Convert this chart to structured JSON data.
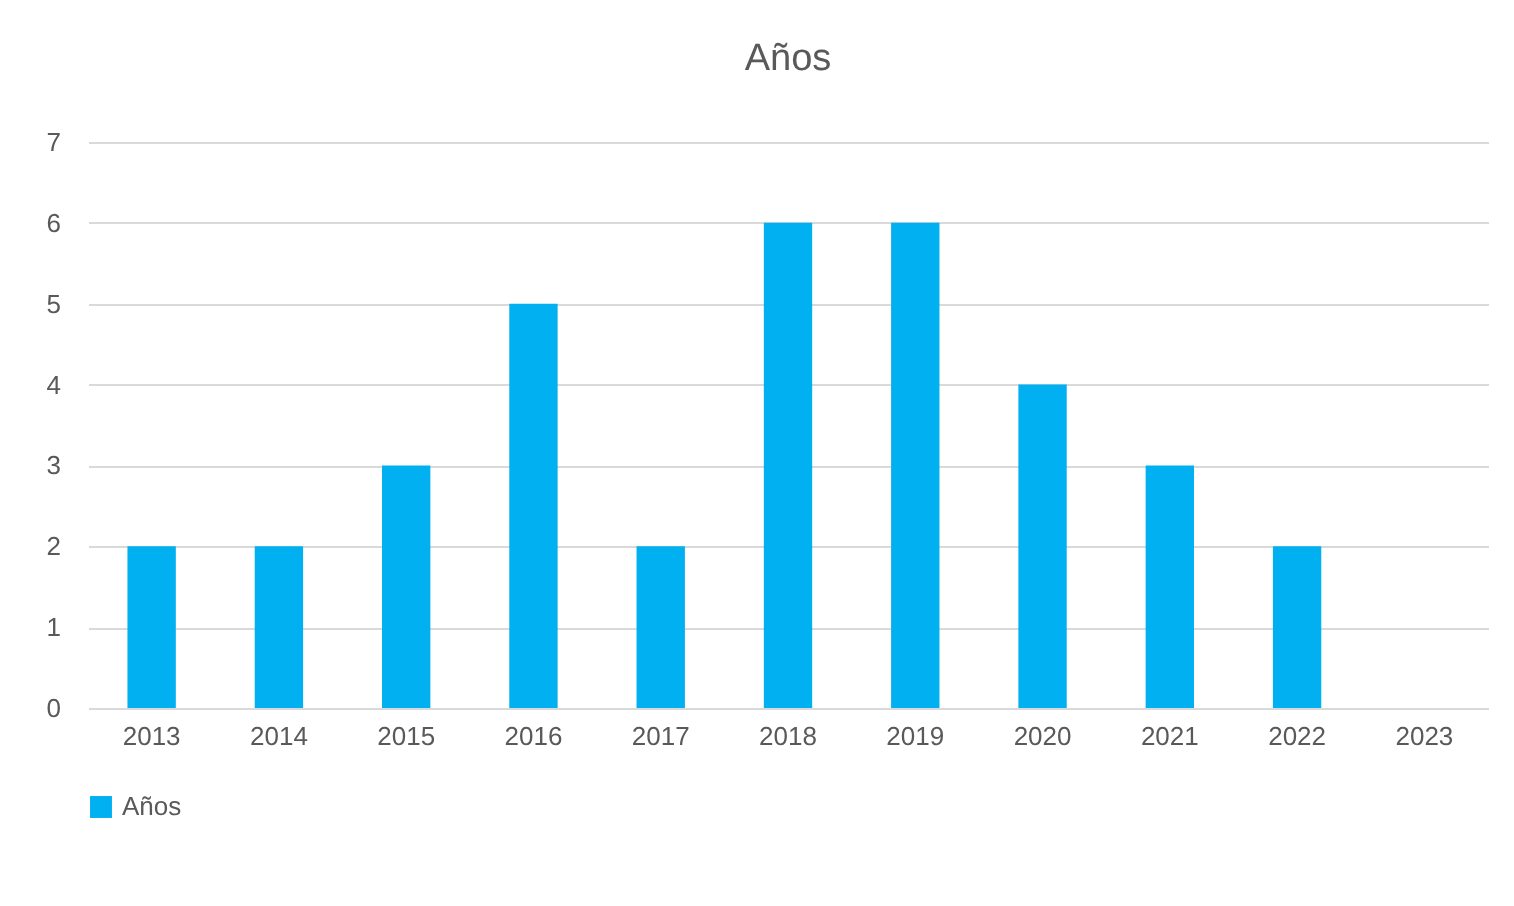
{
  "chart_data": {
    "type": "bar",
    "title": "Años",
    "categories": [
      "2013",
      "2014",
      "2015",
      "2016",
      "2017",
      "2018",
      "2019",
      "2020",
      "2021",
      "2022",
      "2023"
    ],
    "series": [
      {
        "name": "Años",
        "color": "#00b0f0",
        "values": [
          2,
          2,
          3,
          5,
          2,
          6,
          6,
          4,
          3,
          2,
          0
        ]
      }
    ],
    "ylim": [
      0,
      7
    ],
    "yticks": [
      0,
      1,
      2,
      3,
      4,
      5,
      6,
      7
    ],
    "grid": "y",
    "legend": "bottom"
  }
}
